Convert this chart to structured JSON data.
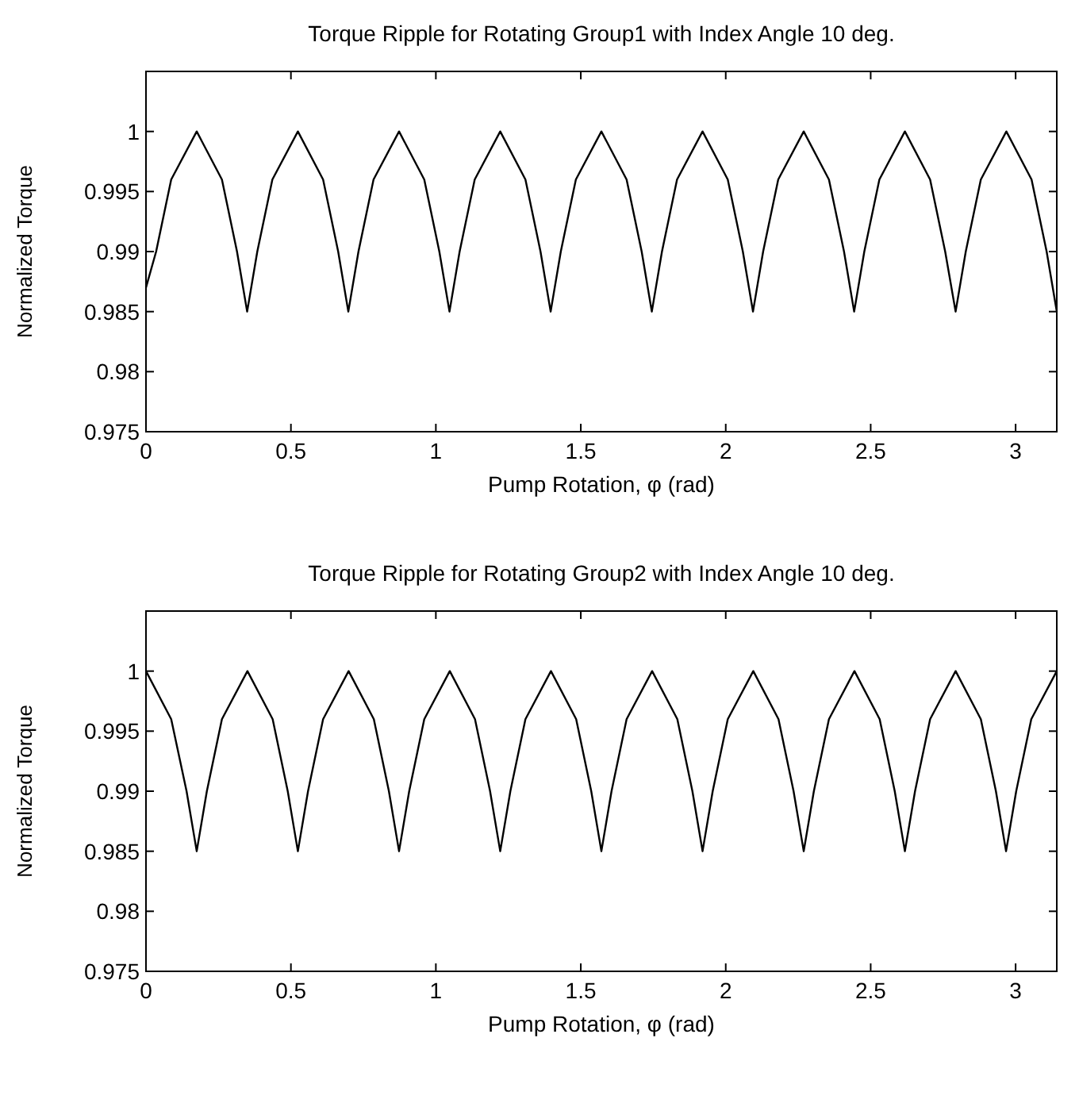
{
  "chart_data": [
    {
      "type": "line",
      "title": "Torque Ripple for Rotating Group1 with Index Angle 10 deg.",
      "xlabel": "Pump Rotation, φ (rad)",
      "ylabel": "Normalized Torque",
      "xlim": [
        0,
        3.142
      ],
      "ylim": [
        0.975,
        1.005
      ],
      "xticks": [
        0,
        0.5,
        1,
        1.5,
        2,
        2.5,
        3
      ],
      "yticks": [
        0.975,
        0.98,
        0.985,
        0.99,
        0.995,
        1
      ],
      "grid": false,
      "marker": "none",
      "line_style": "solid",
      "series": [
        {
          "color": "#000000",
          "x": [
            0,
            0.035,
            0.087,
            0.175,
            0.262,
            0.314,
            0.349,
            0.384,
            0.436,
            0.524,
            0.611,
            0.663,
            0.698,
            0.733,
            0.785,
            0.873,
            0.96,
            1.012,
            1.047,
            1.082,
            1.134,
            1.222,
            1.309,
            1.361,
            1.396,
            1.431,
            1.483,
            1.571,
            1.658,
            1.71,
            1.745,
            1.78,
            1.832,
            1.92,
            2.007,
            2.059,
            2.094,
            2.129,
            2.181,
            2.269,
            2.356,
            2.408,
            2.443,
            2.478,
            2.53,
            2.618,
            2.705,
            2.757,
            2.793,
            2.828,
            2.88,
            2.968,
            3.055,
            3.107,
            3.142
          ],
          "values": [
            0.987,
            0.99,
            0.996,
            1,
            0.996,
            0.99,
            0.985,
            0.99,
            0.996,
            1,
            0.996,
            0.99,
            0.985,
            0.99,
            0.996,
            1,
            0.996,
            0.99,
            0.985,
            0.99,
            0.996,
            1,
            0.996,
            0.99,
            0.985,
            0.99,
            0.996,
            1,
            0.996,
            0.99,
            0.985,
            0.99,
            0.996,
            1,
            0.996,
            0.99,
            0.985,
            0.99,
            0.996,
            1,
            0.996,
            0.99,
            0.985,
            0.99,
            0.996,
            1,
            0.996,
            0.99,
            0.985,
            0.99,
            0.996,
            1,
            0.996,
            0.99,
            0.985
          ]
        }
      ]
    },
    {
      "type": "line",
      "title": "Torque Ripple for Rotating Group2 with Index Angle 10 deg.",
      "xlabel": "Pump Rotation, φ (rad)",
      "ylabel": "Normalized Torque",
      "xlim": [
        0,
        3.142
      ],
      "ylim": [
        0.975,
        1.005
      ],
      "xticks": [
        0,
        0.5,
        1,
        1.5,
        2,
        2.5,
        3
      ],
      "yticks": [
        0.975,
        0.98,
        0.985,
        0.99,
        0.995,
        1
      ],
      "grid": false,
      "marker": "none",
      "line_style": "solid",
      "series": [
        {
          "color": "#000000",
          "x": [
            0,
            0.087,
            0.14,
            0.175,
            0.21,
            0.262,
            0.35,
            0.437,
            0.489,
            0.524,
            0.559,
            0.611,
            0.699,
            0.786,
            0.838,
            0.873,
            0.908,
            0.96,
            1.048,
            1.135,
            1.187,
            1.222,
            1.257,
            1.309,
            1.397,
            1.484,
            1.536,
            1.571,
            1.606,
            1.658,
            1.746,
            1.833,
            1.885,
            1.92,
            1.955,
            2.007,
            2.095,
            2.182,
            2.234,
            2.269,
            2.304,
            2.356,
            2.444,
            2.531,
            2.583,
            2.618,
            2.653,
            2.705,
            2.793,
            2.88,
            2.932,
            2.967,
            3.002,
            3.054,
            3.142
          ],
          "values": [
            1,
            0.996,
            0.99,
            0.985,
            0.99,
            0.996,
            1,
            0.996,
            0.99,
            0.985,
            0.99,
            0.996,
            1,
            0.996,
            0.99,
            0.985,
            0.99,
            0.996,
            1,
            0.996,
            0.99,
            0.985,
            0.99,
            0.996,
            1,
            0.996,
            0.99,
            0.985,
            0.99,
            0.996,
            1,
            0.996,
            0.99,
            0.985,
            0.99,
            0.996,
            1,
            0.996,
            0.99,
            0.985,
            0.99,
            0.996,
            1,
            0.996,
            0.99,
            0.985,
            0.99,
            0.996,
            1,
            0.996,
            0.99,
            0.985,
            0.99,
            0.996,
            1
          ]
        }
      ]
    }
  ]
}
